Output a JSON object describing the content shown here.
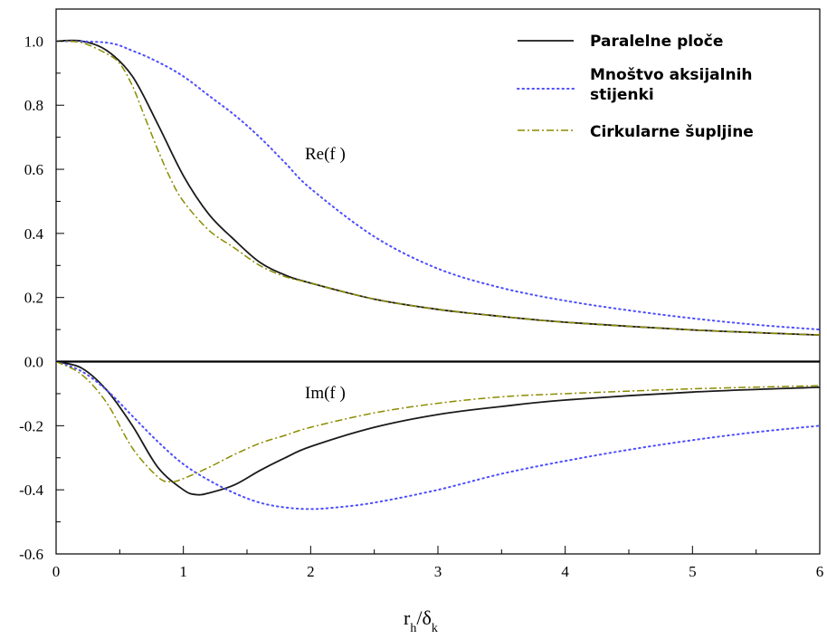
{
  "chart_data": {
    "type": "line",
    "xlim": [
      0,
      6
    ],
    "ylim": [
      -0.6,
      1.1
    ],
    "x_ticks": [
      "0",
      "1",
      "2",
      "3",
      "4",
      "5",
      "6"
    ],
    "y_ticks": [
      "-0.6",
      "-0.4",
      "-0.2",
      "0.0",
      "0.2",
      "0.4",
      "0.6",
      "0.8",
      "1.0"
    ],
    "xlabel": {
      "main": "r",
      "sub1": "h",
      "mid": "/δ",
      "sub2": "k"
    },
    "annotations": {
      "re": "Re(f )",
      "im": "Im(f )"
    },
    "legend_position": "top-right",
    "legend": [
      {
        "label": "Paralelne ploče",
        "style": "solid",
        "color": "#1a1a1a"
      },
      {
        "label_line1": "Mnoštvo aksijalnih",
        "label_line2": "stijenki",
        "style": "dotted",
        "color": "#4d4dff"
      },
      {
        "label": "Cirkularne šupljine",
        "style": "dashdot",
        "color": "#8c8c00"
      }
    ],
    "series": [
      {
        "name": "Paralelne ploče",
        "part": "Re(f)",
        "style": "solid",
        "color": "#1a1a1a",
        "x": [
          0,
          0.2,
          0.4,
          0.6,
          0.8,
          1.0,
          1.2,
          1.4,
          1.6,
          1.8,
          2.0,
          2.5,
          3.0,
          3.5,
          4.0,
          5.0,
          6.0
        ],
        "y": [
          1.0,
          1.0,
          0.97,
          0.89,
          0.74,
          0.58,
          0.46,
          0.38,
          0.31,
          0.27,
          0.245,
          0.195,
          0.163,
          0.141,
          0.123,
          0.099,
          0.083
        ]
      },
      {
        "name": "Paralelne ploče",
        "part": "Im(f)",
        "style": "solid",
        "color": "#1a1a1a",
        "x": [
          0,
          0.2,
          0.4,
          0.6,
          0.8,
          1.0,
          1.1,
          1.2,
          1.4,
          1.6,
          1.8,
          2.0,
          2.5,
          3.0,
          3.5,
          4.0,
          5.0,
          6.0
        ],
        "y": [
          0,
          -0.02,
          -0.09,
          -0.2,
          -0.33,
          -0.4,
          -0.415,
          -0.41,
          -0.385,
          -0.34,
          -0.3,
          -0.265,
          -0.205,
          -0.165,
          -0.14,
          -0.12,
          -0.095,
          -0.08
        ]
      },
      {
        "name": "Mnoštvo aksijalnih stijenki",
        "part": "Re(f)",
        "style": "dotted",
        "color": "#4d4dff",
        "x": [
          0,
          0.4,
          0.6,
          0.8,
          1.0,
          1.2,
          1.4,
          1.6,
          1.8,
          2.0,
          2.5,
          3.0,
          3.5,
          4.0,
          4.5,
          5.0,
          5.5,
          6.0
        ],
        "y": [
          1.0,
          0.995,
          0.97,
          0.935,
          0.89,
          0.83,
          0.77,
          0.7,
          0.62,
          0.54,
          0.39,
          0.29,
          0.23,
          0.19,
          0.16,
          0.135,
          0.115,
          0.1
        ]
      },
      {
        "name": "Mnoštvo aksijalnih stijenki",
        "part": "Im(f)",
        "style": "dotted",
        "color": "#4d4dff",
        "x": [
          0,
          0.2,
          0.4,
          0.6,
          0.8,
          1.0,
          1.2,
          1.4,
          1.6,
          1.8,
          2.0,
          2.2,
          2.5,
          3.0,
          3.5,
          4.0,
          4.5,
          5.0,
          5.5,
          6.0
        ],
        "y": [
          0,
          -0.03,
          -0.09,
          -0.17,
          -0.25,
          -0.32,
          -0.37,
          -0.41,
          -0.44,
          -0.455,
          -0.46,
          -0.455,
          -0.44,
          -0.4,
          -0.35,
          -0.31,
          -0.275,
          -0.245,
          -0.22,
          -0.2
        ]
      },
      {
        "name": "Cirkularne šupljine",
        "part": "Re(f)",
        "style": "dashdot",
        "color": "#8c8c00",
        "x": [
          0,
          0.2,
          0.4,
          0.5,
          0.6,
          0.7,
          0.8,
          0.9,
          1.0,
          1.2,
          1.4,
          1.6,
          1.8,
          2.0,
          2.5,
          3.0,
          3.5,
          4.0,
          5.0,
          6.0
        ],
        "y": [
          1.0,
          0.995,
          0.96,
          0.93,
          0.86,
          0.76,
          0.66,
          0.57,
          0.5,
          0.41,
          0.355,
          0.3,
          0.265,
          0.245,
          0.195,
          0.163,
          0.141,
          0.123,
          0.099,
          0.083
        ]
      },
      {
        "name": "Cirkularne šupljine",
        "part": "Im(f)",
        "style": "dashdot",
        "color": "#8c8c00",
        "x": [
          0,
          0.2,
          0.4,
          0.6,
          0.8,
          0.9,
          1.0,
          1.2,
          1.4,
          1.6,
          1.8,
          2.0,
          2.5,
          3.0,
          3.5,
          4.0,
          5.0,
          6.0
        ],
        "y": [
          0,
          -0.04,
          -0.13,
          -0.27,
          -0.36,
          -0.375,
          -0.365,
          -0.33,
          -0.29,
          -0.255,
          -0.23,
          -0.205,
          -0.16,
          -0.13,
          -0.11,
          -0.1,
          -0.085,
          -0.075
        ]
      }
    ]
  }
}
